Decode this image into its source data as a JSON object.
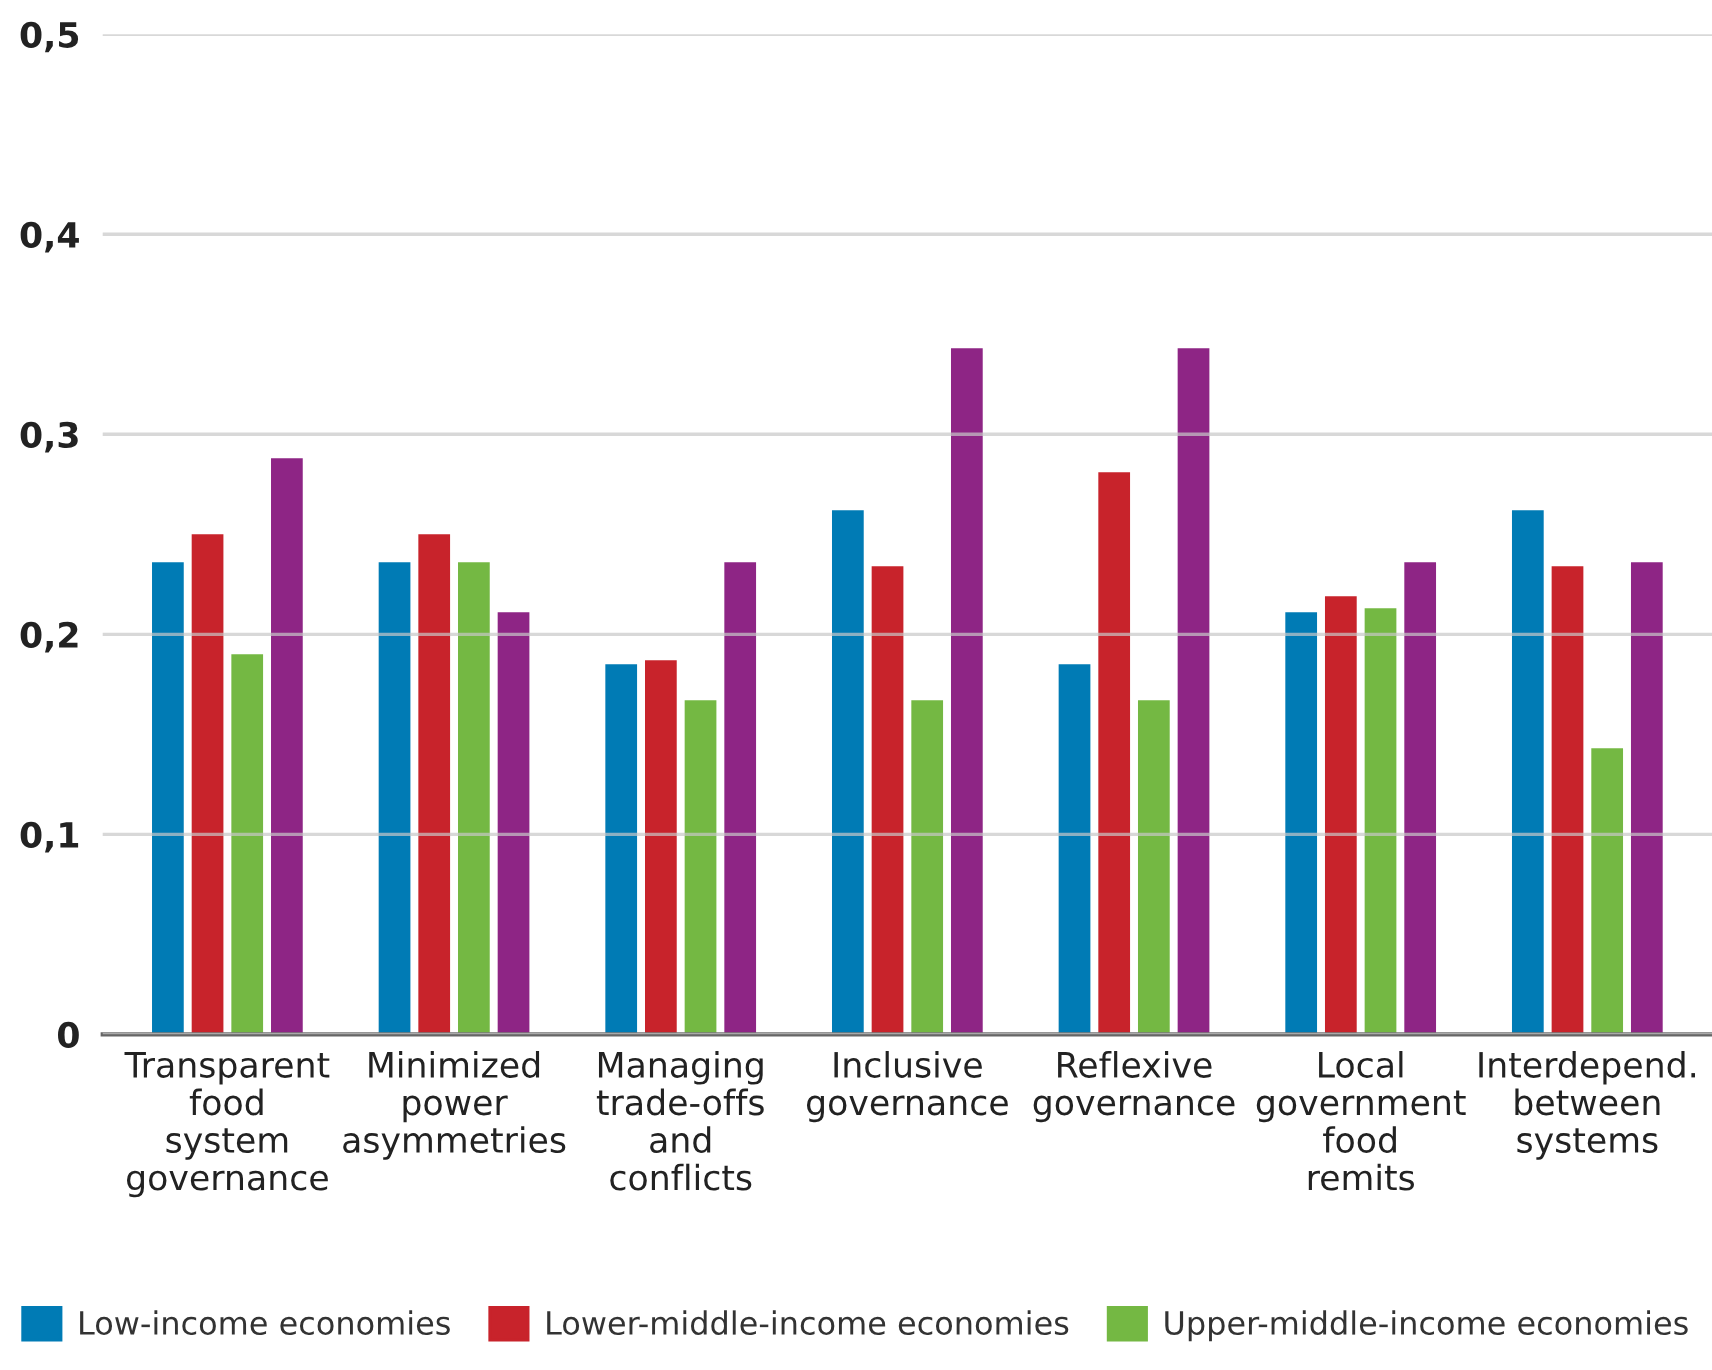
{
  "chart_data": {
    "type": "bar",
    "categories": [
      "Transparent\nfood\nsystem\ngovernance",
      "Minimized\npower\nasymmetries",
      "Managing\ntrade-offs\nand\nconflicts",
      "Inclusive\ngovernance",
      "Reflexive\ngovernance",
      "Local\ngovernment\nfood\nremits",
      "Interdepend.\nbetween\nsystems"
    ],
    "series": [
      {
        "name": "Low-income economies",
        "color": "#007bb5",
        "values": [
          0.236,
          0.236,
          0.185,
          0.262,
          0.185,
          0.211,
          0.262
        ]
      },
      {
        "name": "Lower-middle-income economies",
        "color": "#c8232b",
        "values": [
          0.25,
          0.25,
          0.187,
          0.234,
          0.281,
          0.219,
          0.234
        ]
      },
      {
        "name": "Upper-middle-income economies",
        "color": "#74b843",
        "values": [
          0.19,
          0.236,
          0.167,
          0.167,
          0.167,
          0.213,
          0.143
        ]
      },
      {
        "color": "#8e2585",
        "values": [
          0.288,
          0.211,
          0.236,
          0.343,
          0.343,
          0.236,
          0.236
        ]
      }
    ],
    "ylim": [
      0,
      0.5
    ],
    "yticks": [
      0,
      {
        "value": 0.1,
        "label": "0,1"
      },
      {
        "value": 0.2,
        "label": "0,2"
      },
      {
        "value": 0.3,
        "label": "0,3"
      },
      {
        "value": 0.4,
        "label": "0,4"
      },
      {
        "value": 0.5,
        "label": "0,5"
      }
    ],
    "grid": "y",
    "legend": "bottom"
  }
}
